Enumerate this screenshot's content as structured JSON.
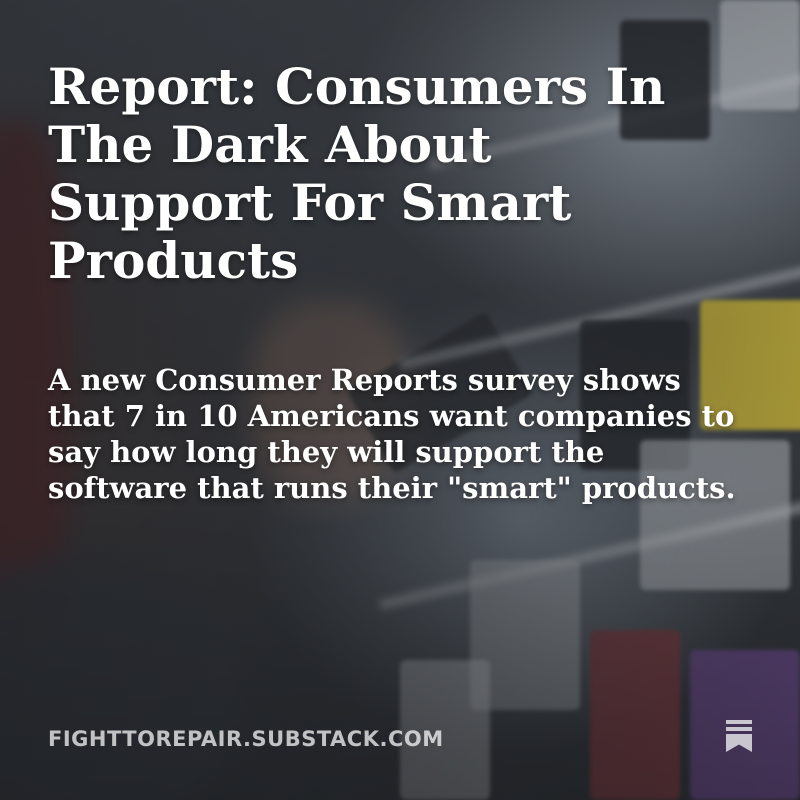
{
  "card": {
    "headline": "Report: Consumers In The Dark About Support For Smart Products",
    "dek": "A new Consumer Reports survey shows that 7 in 10 Americans want companies to say how long they will support the software that runs their \"smart\" products.",
    "source": "FIGHTTOREPAIR.SUBSTACK.COM",
    "logo_icon": "substack-bookmark-icon"
  },
  "colors": {
    "text": "#ffffff",
    "source_text": "#ffffffb8",
    "background": "#2b2d30"
  }
}
